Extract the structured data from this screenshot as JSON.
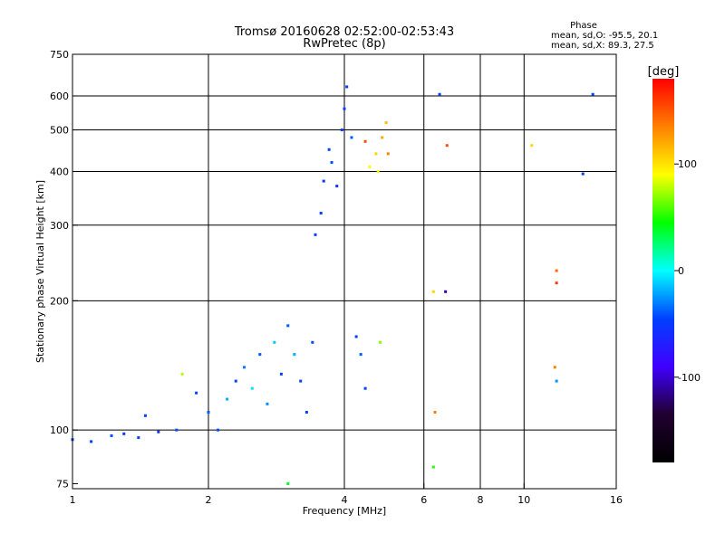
{
  "chart_data": {
    "type": "scatter",
    "title": "Tromsø 20160628 02:52:00-02:53:43",
    "subtitle": "RwPretec (8p)",
    "xlabel": "Frequency [MHz]",
    "ylabel": "Stationary phase Virtual Height [km]",
    "x_scale": "log",
    "y_scale": "log",
    "xlim": [
      1,
      16
    ],
    "ylim": [
      73,
      750
    ],
    "x_ticks": [
      1,
      2,
      4,
      6,
      8,
      10,
      16
    ],
    "y_ticks": [
      75,
      100,
      200,
      300,
      400,
      500,
      600,
      750
    ],
    "x_gridlines": [
      2,
      4,
      6,
      8,
      10
    ],
    "y_gridlines": [
      100,
      200,
      300,
      400,
      500,
      600
    ],
    "grid": true,
    "phase_label": "Phase",
    "stats": [
      "mean, sd,O: -95.5, 20.1",
      "mean, sd,X:  89.3, 27.5"
    ],
    "colorbar": {
      "unit": "[deg]",
      "range": [
        -180,
        180
      ],
      "ticks": [
        100,
        0,
        -100
      ],
      "colors": [
        "#ff0000",
        "#ff8000",
        "#ffff00",
        "#00ff00",
        "#00ffff",
        "#0040ff",
        "#4000ff",
        "#200030",
        "#000000"
      ]
    },
    "series": [
      {
        "values": [
          {
            "x": 1.0,
            "y": 95,
            "phase": -100
          },
          {
            "x": 1.1,
            "y": 94,
            "phase": -100
          },
          {
            "x": 1.22,
            "y": 97,
            "phase": -95
          },
          {
            "x": 1.3,
            "y": 98,
            "phase": -105
          },
          {
            "x": 1.4,
            "y": 96,
            "phase": -100
          },
          {
            "x": 1.45,
            "y": 108,
            "phase": -100
          },
          {
            "x": 1.55,
            "y": 99,
            "phase": -110
          },
          {
            "x": 1.7,
            "y": 100,
            "phase": -95
          },
          {
            "x": 1.75,
            "y": 135,
            "phase": 80
          },
          {
            "x": 1.88,
            "y": 122,
            "phase": -100
          },
          {
            "x": 2.0,
            "y": 110,
            "phase": -90
          },
          {
            "x": 2.1,
            "y": 100,
            "phase": -95
          },
          {
            "x": 2.2,
            "y": 118,
            "phase": -60
          },
          {
            "x": 2.3,
            "y": 130,
            "phase": -100
          },
          {
            "x": 2.4,
            "y": 140,
            "phase": -80
          },
          {
            "x": 2.5,
            "y": 125,
            "phase": -40
          },
          {
            "x": 2.6,
            "y": 150,
            "phase": -90
          },
          {
            "x": 2.7,
            "y": 115,
            "phase": -70
          },
          {
            "x": 2.8,
            "y": 160,
            "phase": -50
          },
          {
            "x": 2.9,
            "y": 135,
            "phase": -100
          },
          {
            "x": 3.0,
            "y": 175,
            "phase": -90
          },
          {
            "x": 3.1,
            "y": 150,
            "phase": -60
          },
          {
            "x": 3.2,
            "y": 130,
            "phase": -100
          },
          {
            "x": 3.3,
            "y": 110,
            "phase": -100
          },
          {
            "x": 3.4,
            "y": 160,
            "phase": -95
          },
          {
            "x": 3.45,
            "y": 285,
            "phase": -100
          },
          {
            "x": 3.55,
            "y": 320,
            "phase": -100
          },
          {
            "x": 3.6,
            "y": 380,
            "phase": -105
          },
          {
            "x": 3.7,
            "y": 450,
            "phase": -100
          },
          {
            "x": 3.75,
            "y": 420,
            "phase": -95
          },
          {
            "x": 3.85,
            "y": 370,
            "phase": -110
          },
          {
            "x": 3.95,
            "y": 500,
            "phase": -100
          },
          {
            "x": 4.0,
            "y": 560,
            "phase": -100
          },
          {
            "x": 4.05,
            "y": 630,
            "phase": -100
          },
          {
            "x": 4.15,
            "y": 480,
            "phase": -90
          },
          {
            "x": 4.25,
            "y": 165,
            "phase": -100
          },
          {
            "x": 4.35,
            "y": 150,
            "phase": -90
          },
          {
            "x": 4.45,
            "y": 125,
            "phase": -100
          },
          {
            "x": 4.55,
            "y": 410,
            "phase": 100
          },
          {
            "x": 4.7,
            "y": 440,
            "phase": 110
          },
          {
            "x": 4.85,
            "y": 480,
            "phase": 120
          },
          {
            "x": 4.75,
            "y": 400,
            "phase": 95
          },
          {
            "x": 4.95,
            "y": 520,
            "phase": 115
          },
          {
            "x": 5.0,
            "y": 440,
            "phase": 130
          },
          {
            "x": 4.45,
            "y": 470,
            "phase": 150
          },
          {
            "x": 4.8,
            "y": 160,
            "phase": 70
          },
          {
            "x": 6.3,
            "y": 210,
            "phase": 110
          },
          {
            "x": 6.35,
            "y": 110,
            "phase": 130
          },
          {
            "x": 6.3,
            "y": 82,
            "phase": 40
          },
          {
            "x": 6.7,
            "y": 210,
            "phase": -150
          },
          {
            "x": 6.5,
            "y": 605,
            "phase": -100
          },
          {
            "x": 6.75,
            "y": 460,
            "phase": 150
          },
          {
            "x": 10.4,
            "y": 460,
            "phase": 110
          },
          {
            "x": 11.8,
            "y": 235,
            "phase": 140
          },
          {
            "x": 11.8,
            "y": 220,
            "phase": 160
          },
          {
            "x": 11.7,
            "y": 140,
            "phase": 130
          },
          {
            "x": 11.8,
            "y": 130,
            "phase": -70
          },
          {
            "x": 13.5,
            "y": 395,
            "phase": -100
          },
          {
            "x": 14.2,
            "y": 605,
            "phase": -100
          },
          {
            "x": 3.0,
            "y": 75,
            "phase": 20
          }
        ]
      }
    ]
  }
}
